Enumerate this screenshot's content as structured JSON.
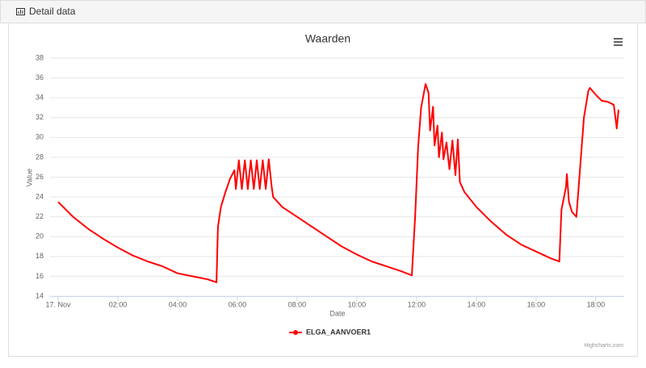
{
  "panel": {
    "title": "Detail data"
  },
  "chart_data": {
    "type": "line",
    "title": "Waarden",
    "x_label": "Date",
    "y_label": "Value",
    "credits": "Highcharts.com",
    "x": [
      0,
      0.5,
      1,
      1.5,
      2,
      2.5,
      3,
      3.5,
      4,
      4.5,
      5,
      5.3,
      5.35,
      5.45,
      5.6,
      5.75,
      5.9,
      5.95,
      6.05,
      6.15,
      6.25,
      6.35,
      6.45,
      6.55,
      6.65,
      6.75,
      6.85,
      6.95,
      7.05,
      7.15,
      7.2,
      7.5,
      8,
      8.5,
      9,
      9.5,
      10,
      10.5,
      11,
      11.5,
      11.84,
      11.95,
      12.05,
      12.15,
      12.3,
      12.4,
      12.45,
      12.55,
      12.6,
      12.7,
      12.75,
      12.85,
      12.9,
      13,
      13.1,
      13.2,
      13.3,
      13.38,
      13.45,
      13.6,
      14,
      14.5,
      15,
      15.5,
      16,
      16.5,
      16.78,
      16.85,
      17,
      17.03,
      17.1,
      17.2,
      17.35,
      17.5,
      17.6,
      17.75,
      17.8,
      18,
      18.2,
      18.4,
      18.6,
      18.7,
      18.76
    ],
    "series": [
      {
        "name": "ELGA_AANVOER1",
        "color": "#ff0000",
        "values": [
          23.5,
          22,
          20.8,
          19.8,
          18.9,
          18.1,
          17.5,
          17,
          16.3,
          16,
          15.7,
          15.4,
          21,
          23,
          24.5,
          25.8,
          26.7,
          24.8,
          27.7,
          24.8,
          27.7,
          24.8,
          27.7,
          24.8,
          27.7,
          24.8,
          27.7,
          24.8,
          27.8,
          25,
          24,
          23,
          22,
          21,
          20,
          19,
          18.2,
          17.5,
          17,
          16.5,
          16.1,
          22,
          29,
          33,
          35.4,
          34.5,
          30.7,
          33.1,
          29.2,
          31.2,
          28,
          30.5,
          27.8,
          29.5,
          26.8,
          29.7,
          26.2,
          29.8,
          25.5,
          24.5,
          23,
          21.5,
          20.2,
          19.2,
          18.5,
          17.8,
          17.5,
          22.7,
          25,
          26.3,
          23.5,
          22.5,
          22,
          28,
          32,
          34.7,
          35,
          34.3,
          33.7,
          33.6,
          33.3,
          30.9,
          32.8
        ]
      }
    ],
    "xlim": [
      0,
      18.95
    ],
    "xticks": [
      {
        "value": 0,
        "label": "17. Nov"
      },
      {
        "value": 2,
        "label": "02:00"
      },
      {
        "value": 4,
        "label": "04:00"
      },
      {
        "value": 6,
        "label": "06:00"
      },
      {
        "value": 8,
        "label": "08:00"
      },
      {
        "value": 10,
        "label": "10:00"
      },
      {
        "value": 12,
        "label": "12:00"
      },
      {
        "value": 14,
        "label": "14:00"
      },
      {
        "value": 16,
        "label": "16:00"
      },
      {
        "value": 18,
        "label": "18:00"
      }
    ],
    "ylim": [
      14,
      38
    ],
    "yticks": [
      14,
      16,
      18,
      20,
      22,
      24,
      26,
      28,
      30,
      32,
      34,
      36,
      38
    ],
    "grid": true,
    "legend": "bottom"
  }
}
